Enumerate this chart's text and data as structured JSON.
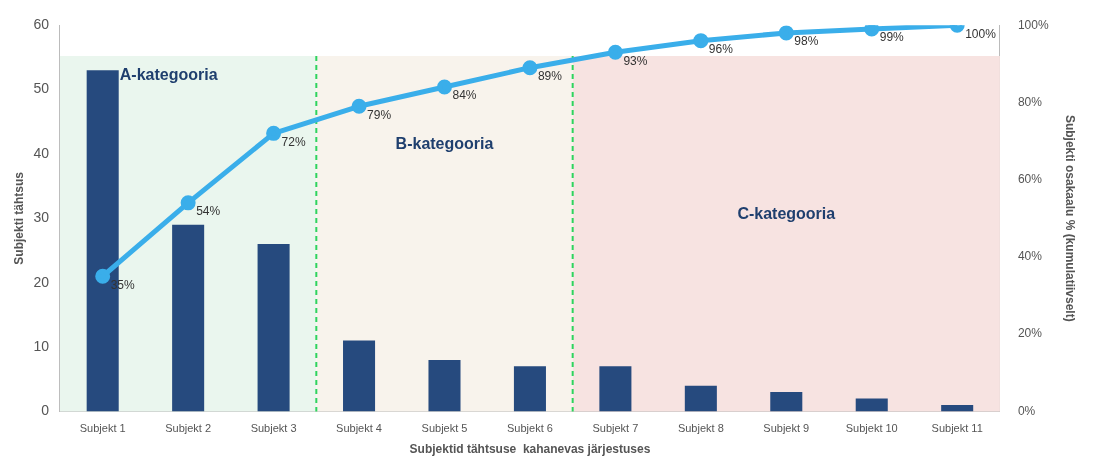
{
  "chart_data": {
    "type": "bar",
    "categories": [
      "Subjekt 1",
      "Subjekt 2",
      "Subjekt 3",
      "Subjekt 4",
      "Subjekt 5",
      "Subjekt 6",
      "Subjekt 7",
      "Subjekt 8",
      "Subjekt 9",
      "Subjekt 10",
      "Subjekt 11"
    ],
    "series": [
      {
        "color": "#264a7e",
        "values": [
          53,
          29,
          26,
          11,
          8,
          7,
          7,
          4,
          3,
          2,
          1
        ]
      },
      {
        "type": "line",
        "axis": "y2",
        "color": "#3aaeea",
        "values": [
          35,
          54,
          72,
          79,
          84,
          89,
          93,
          96,
          98,
          99,
          100
        ],
        "value_labels": [
          "35%",
          "54%",
          "72%",
          "79%",
          "84%",
          "89%",
          "93%",
          "96%",
          "98%",
          "99%",
          "100%"
        ]
      }
    ],
    "xlabel": "Subjektid tähtsuse  kahanevas järjestuses",
    "ylabel": "Subjekti tähtsus",
    "y2label": "Subjekti osakaalu % (kumulatiivselt)",
    "ylim": [
      0,
      60
    ],
    "yticks": [
      0,
      10,
      20,
      30,
      40,
      50,
      60
    ],
    "y2lim": [
      0,
      100
    ],
    "y2ticks": [
      {
        "value": 0,
        "label": "0%"
      },
      {
        "value": 20,
        "label": "20%"
      },
      {
        "value": 40,
        "label": "40%"
      },
      {
        "value": 60,
        "label": "60%"
      },
      {
        "value": 80,
        "label": "80%"
      },
      {
        "value": 100,
        "label": "100%"
      }
    ],
    "bands": [
      {
        "axis": "x",
        "from": "Subjekt 1",
        "to": "Subjekt 3",
        "label": "A-kategooria",
        "color": "#eaf6ee"
      },
      {
        "axis": "x",
        "from": "Subjekt 4",
        "to": "Subjekt 6",
        "label": "B-kategooria",
        "color": "#f8f3ec"
      },
      {
        "axis": "x",
        "from": "Subjekt 7",
        "to": "Subjekt 11",
        "label": "C-kategooria",
        "color": "#f7e3e1"
      }
    ],
    "marker": "circle",
    "grid": false,
    "legend": false
  }
}
